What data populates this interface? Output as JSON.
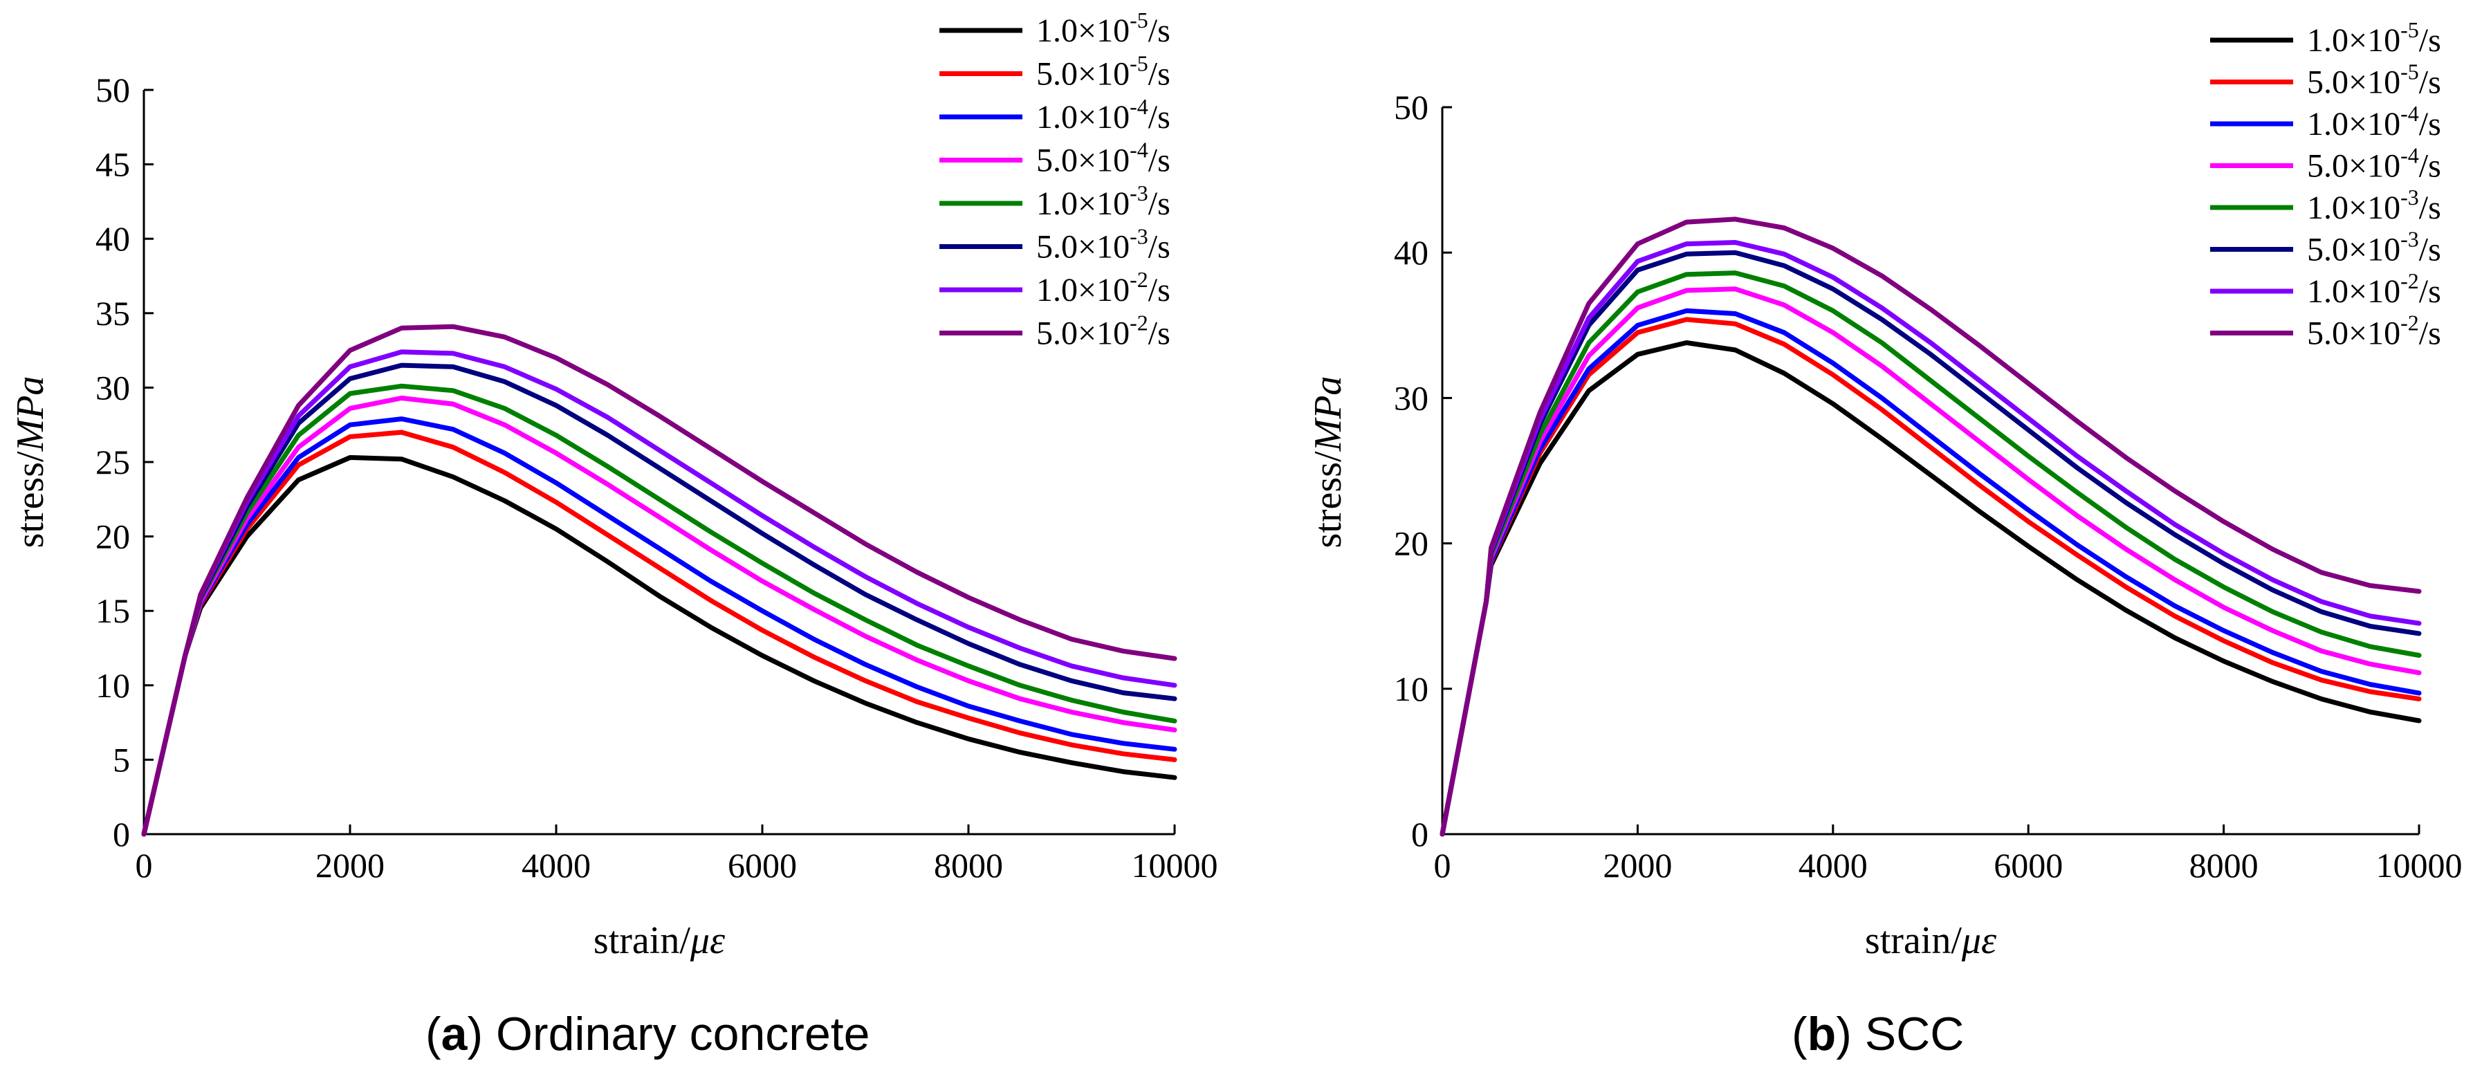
{
  "colors": {
    "axis": "#000000",
    "series": [
      "#000000",
      "#ff0000",
      "#0000ff",
      "#ff00ff",
      "#008000",
      "#000080",
      "#8000ff",
      "#800080"
    ]
  },
  "chart_data": [
    {
      "type": "line",
      "caption": {
        "letter": "a",
        "open": "(",
        "close": ")",
        "text": " Ordinary concrete"
      },
      "xlabel": "strain/",
      "xlabel_italic": "με",
      "ylabel": "stress/",
      "ylabel_italic": "MPa",
      "xlim": [
        0,
        10000
      ],
      "ylim": [
        0,
        50
      ],
      "xticks": [
        0,
        2000,
        4000,
        6000,
        8000,
        10000
      ],
      "yticks": [
        0,
        5,
        10,
        15,
        20,
        25,
        30,
        35,
        40,
        45,
        50
      ],
      "legend_position": "top-right",
      "x": [
        0,
        400,
        550,
        1000,
        1500,
        2000,
        2500,
        3000,
        3500,
        4000,
        4500,
        5000,
        5500,
        6000,
        6500,
        7000,
        7500,
        8000,
        8500,
        9000,
        9500,
        10000
      ],
      "series": [
        {
          "name": "1.0×10-5/s",
          "label_base": "1.0×10",
          "label_exp": "-5",
          "label_unit": "/s",
          "values": [
            0,
            12.0,
            15.2,
            20.0,
            23.8,
            25.3,
            25.2,
            24.0,
            22.4,
            20.5,
            18.3,
            16.0,
            13.9,
            12.0,
            10.3,
            8.8,
            7.5,
            6.4,
            5.5,
            4.8,
            4.2,
            3.8
          ]
        },
        {
          "name": "5.0×10-5/s",
          "label_base": "5.0×10",
          "label_exp": "-5",
          "label_unit": "/s",
          "values": [
            0,
            12.0,
            15.4,
            20.5,
            24.8,
            26.7,
            27.0,
            26.0,
            24.3,
            22.3,
            20.1,
            17.9,
            15.7,
            13.7,
            11.9,
            10.3,
            8.9,
            7.8,
            6.8,
            6.0,
            5.4,
            5.0
          ]
        },
        {
          "name": "1.0×10-4/s",
          "label_base": "1.0×10",
          "label_exp": "-4",
          "label_unit": "/s",
          "values": [
            0,
            12.0,
            15.5,
            20.8,
            25.3,
            27.5,
            27.9,
            27.2,
            25.6,
            23.6,
            21.4,
            19.2,
            17.0,
            15.0,
            13.1,
            11.4,
            9.9,
            8.6,
            7.6,
            6.7,
            6.1,
            5.7
          ]
        },
        {
          "name": "5.0×10-4/s",
          "label_base": "5.0×10",
          "label_exp": "-4",
          "label_unit": "/s",
          "values": [
            0,
            12.0,
            15.6,
            21.2,
            26.0,
            28.6,
            29.3,
            28.9,
            27.5,
            25.6,
            23.5,
            21.3,
            19.1,
            17.0,
            15.1,
            13.3,
            11.7,
            10.3,
            9.1,
            8.2,
            7.5,
            7.0
          ]
        },
        {
          "name": "1.0×10-3/s",
          "label_base": "1.0×10",
          "label_exp": "-3",
          "label_unit": "/s",
          "values": [
            0,
            12.0,
            15.8,
            21.6,
            26.8,
            29.6,
            30.1,
            29.8,
            28.6,
            26.8,
            24.7,
            22.5,
            20.3,
            18.2,
            16.2,
            14.4,
            12.7,
            11.3,
            10.0,
            9.0,
            8.2,
            7.6
          ]
        },
        {
          "name": "5.0×10-3/s",
          "label_base": "5.0×10",
          "label_exp": "-3",
          "label_unit": "/s",
          "values": [
            0,
            12.0,
            15.9,
            22.0,
            27.6,
            30.6,
            31.5,
            31.4,
            30.4,
            28.8,
            26.8,
            24.6,
            22.4,
            20.2,
            18.1,
            16.1,
            14.4,
            12.8,
            11.4,
            10.3,
            9.5,
            9.1
          ]
        },
        {
          "name": "1.0×10-2/s",
          "label_base": "1.0×10",
          "label_exp": "-2",
          "label_unit": "/s",
          "values": [
            0,
            12.0,
            16.0,
            22.3,
            28.1,
            31.4,
            32.4,
            32.3,
            31.4,
            29.9,
            28.0,
            25.8,
            23.6,
            21.4,
            19.3,
            17.3,
            15.5,
            13.9,
            12.5,
            11.3,
            10.5,
            10.0
          ]
        },
        {
          "name": "5.0×10-2/s",
          "label_base": "5.0×10",
          "label_exp": "-2",
          "label_unit": "/s",
          "values": [
            0,
            12.0,
            16.1,
            22.6,
            28.8,
            32.5,
            34.0,
            34.1,
            33.4,
            32.0,
            30.2,
            28.1,
            25.9,
            23.7,
            21.6,
            19.5,
            17.6,
            15.9,
            14.4,
            13.1,
            12.3,
            11.8
          ]
        }
      ]
    },
    {
      "type": "line",
      "caption": {
        "letter": "b",
        "open": "(",
        "close": ")",
        "text": " SCC"
      },
      "xlabel": "strain/",
      "xlabel_italic": "με",
      "ylabel": "stress/",
      "ylabel_italic": "MPa",
      "xlim": [
        0,
        10000
      ],
      "ylim": [
        0,
        50
      ],
      "xticks": [
        0,
        2000,
        4000,
        6000,
        8000,
        10000
      ],
      "yticks": [
        0,
        10,
        20,
        30,
        40,
        50
      ],
      "legend_position": "top-right",
      "x": [
        0,
        450,
        500,
        1000,
        1500,
        2000,
        2500,
        3000,
        3500,
        4000,
        4500,
        5000,
        5500,
        6000,
        6500,
        7000,
        7500,
        8000,
        8500,
        9000,
        9500,
        10000
      ],
      "series": [
        {
          "name": "1.0×10-5/s",
          "label_base": "1.0×10",
          "label_exp": "-5",
          "label_unit": "/s",
          "values": [
            0,
            16.0,
            18.5,
            25.5,
            30.5,
            33.0,
            33.8,
            33.3,
            31.7,
            29.6,
            27.2,
            24.7,
            22.2,
            19.8,
            17.5,
            15.4,
            13.5,
            11.9,
            10.5,
            9.3,
            8.4,
            7.8
          ]
        },
        {
          "name": "5.0×10-5/s",
          "label_base": "5.0×10",
          "label_exp": "-5",
          "label_unit": "/s",
          "values": [
            0,
            16.0,
            18.7,
            26.2,
            31.6,
            34.5,
            35.4,
            35.1,
            33.7,
            31.6,
            29.2,
            26.6,
            24.0,
            21.5,
            19.2,
            17.0,
            15.0,
            13.3,
            11.8,
            10.6,
            9.8,
            9.3
          ]
        },
        {
          "name": "1.0×10-4/s",
          "label_base": "1.0×10",
          "label_exp": "-4",
          "label_unit": "/s",
          "values": [
            0,
            16.0,
            18.8,
            26.5,
            32.0,
            35.0,
            36.0,
            35.8,
            34.5,
            32.4,
            30.0,
            27.4,
            24.8,
            22.3,
            19.9,
            17.7,
            15.7,
            14.0,
            12.5,
            11.2,
            10.3,
            9.7
          ]
        },
        {
          "name": "5.0×10-4/s",
          "label_base": "5.0×10",
          "label_exp": "-4",
          "label_unit": "/s",
          "values": [
            0,
            16.0,
            19.0,
            27.0,
            32.9,
            36.2,
            37.4,
            37.5,
            36.4,
            34.5,
            32.2,
            29.6,
            27.0,
            24.4,
            21.9,
            19.6,
            17.5,
            15.6,
            14.0,
            12.6,
            11.7,
            11.1
          ]
        },
        {
          "name": "1.0×10-3/s",
          "label_base": "1.0×10",
          "label_exp": "-3",
          "label_unit": "/s",
          "values": [
            0,
            16.0,
            19.2,
            27.5,
            33.8,
            37.3,
            38.5,
            38.6,
            37.7,
            36.0,
            33.8,
            31.2,
            28.6,
            26.0,
            23.5,
            21.1,
            18.9,
            17.0,
            15.3,
            13.9,
            12.9,
            12.3
          ]
        },
        {
          "name": "5.0×10-3/s",
          "label_base": "5.0×10",
          "label_exp": "-3",
          "label_unit": "/s",
          "values": [
            0,
            16.0,
            19.4,
            28.2,
            35.0,
            38.8,
            39.9,
            40.0,
            39.1,
            37.5,
            35.4,
            33.0,
            30.4,
            27.8,
            25.2,
            22.8,
            20.6,
            18.6,
            16.8,
            15.3,
            14.3,
            13.8
          ]
        },
        {
          "name": "1.0×10-2/s",
          "label_base": "1.0×10",
          "label_exp": "-2",
          "label_unit": "/s",
          "values": [
            0,
            16.0,
            19.5,
            28.5,
            35.5,
            39.4,
            40.6,
            40.7,
            39.9,
            38.3,
            36.2,
            33.8,
            31.2,
            28.6,
            26.0,
            23.6,
            21.3,
            19.3,
            17.5,
            16.0,
            15.0,
            14.5
          ]
        },
        {
          "name": "5.0×10-2/s",
          "label_base": "5.0×10",
          "label_exp": "-2",
          "label_unit": "/s",
          "values": [
            0,
            16.0,
            19.7,
            29.0,
            36.5,
            40.6,
            42.1,
            42.3,
            41.7,
            40.3,
            38.4,
            36.1,
            33.6,
            31.0,
            28.4,
            25.9,
            23.6,
            21.5,
            19.6,
            18.0,
            17.1,
            16.7
          ]
        }
      ]
    }
  ]
}
